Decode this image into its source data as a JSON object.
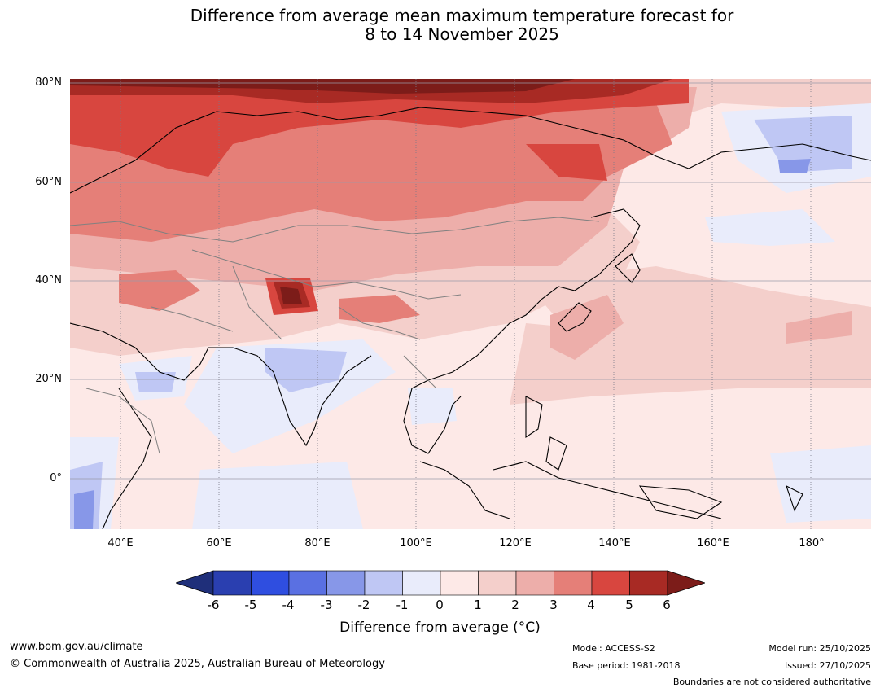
{
  "title": {
    "line1": "Difference from average mean maximum temperature forecast for",
    "line2": "8 to 14 November 2025"
  },
  "map": {
    "lat_labels": [
      "80°N",
      "60°N",
      "40°N",
      "20°N",
      "0°"
    ],
    "lon_labels": [
      "40°E",
      "60°E",
      "80°E",
      "100°E",
      "120°E",
      "140°E",
      "160°E",
      "180°"
    ]
  },
  "colorbar": {
    "ticks": [
      "-6",
      "-5",
      "-4",
      "-3",
      "-2",
      "-1",
      "0",
      "1",
      "2",
      "3",
      "4",
      "5",
      "6"
    ],
    "colors": [
      "#1f2f7a",
      "#2a3fb0",
      "#2f4ee0",
      "#5a70e2",
      "#8797e8",
      "#bfc7f4",
      "#e9ecfb",
      "#fde9e7",
      "#f4cfcb",
      "#edaeaa",
      "#e57f78",
      "#d8463f",
      "#a82a24",
      "#7c1c19"
    ],
    "label": "Difference from average (°C)"
  },
  "footer": {
    "url": "www.bom.gov.au/climate",
    "copyright": "© Commonwealth of Australia 2025, Australian Bureau of Meteorology",
    "model": "Model: ACCESS-S2",
    "base_period": "Base period: 1981-2018",
    "model_run": "Model run: 25/10/2025",
    "issued": "Issued: 27/10/2025",
    "disclaimer": "Boundaries are not considered authoritative"
  }
}
